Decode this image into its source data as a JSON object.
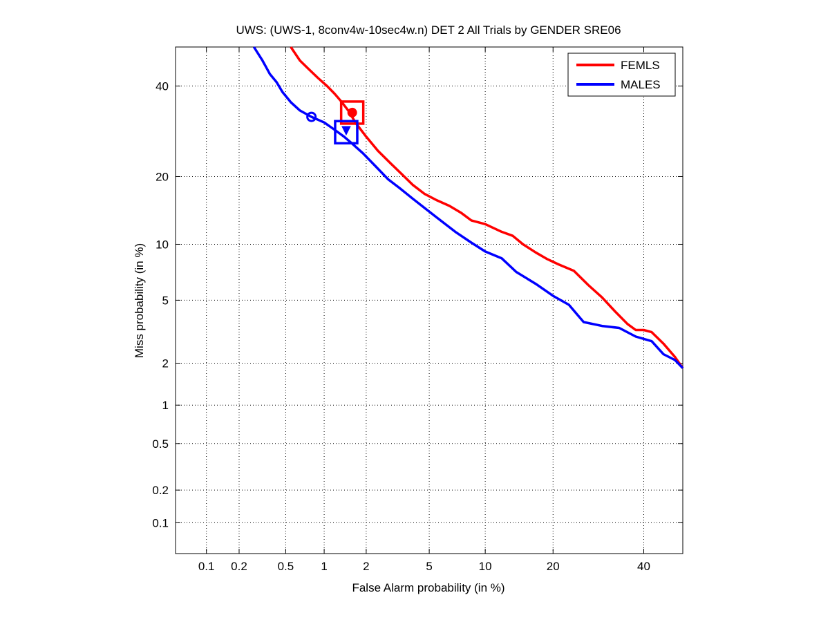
{
  "chart_data": {
    "type": "line",
    "title": "UWS: (UWS-1, 8conv4w-10sec4w.n) DET 2 All Trials by GENDER SRE06",
    "xlabel": "False Alarm probability (in %)",
    "ylabel": "Miss probability (in %)",
    "xscale": "normal-deviate",
    "yscale": "normal-deviate",
    "xlim": [
      0.05,
      50
    ],
    "ylim": [
      0.05,
      50
    ],
    "grid": true,
    "legend_position": "top-right",
    "x_ticks": [
      {
        "value": 0.1,
        "label": "0.1"
      },
      {
        "value": 0.2,
        "label": "0.2"
      },
      {
        "value": 0.5,
        "label": "0.5"
      },
      {
        "value": 1,
        "label": "1"
      },
      {
        "value": 2,
        "label": "2"
      },
      {
        "value": 5,
        "label": "5"
      },
      {
        "value": 10,
        "label": "10"
      },
      {
        "value": 20,
        "label": "20"
      },
      {
        "value": 40,
        "label": "40"
      }
    ],
    "y_ticks": [
      {
        "value": 0.1,
        "label": "0.1"
      },
      {
        "value": 0.2,
        "label": "0.2"
      },
      {
        "value": 0.5,
        "label": "0.5"
      },
      {
        "value": 1,
        "label": "1"
      },
      {
        "value": 2,
        "label": "2"
      },
      {
        "value": 5,
        "label": "5"
      },
      {
        "value": 10,
        "label": "10"
      },
      {
        "value": 20,
        "label": "20"
      },
      {
        "value": 40,
        "label": "40"
      }
    ],
    "series": [
      {
        "name": "FEMLS",
        "color": "#ff0000",
        "x": [
          0.55,
          0.65,
          0.75,
          0.9,
          1.05,
          1.2,
          1.35,
          1.5,
          1.7,
          2.0,
          2.4,
          2.9,
          3.4,
          4.0,
          4.7,
          5.5,
          6.5,
          7.5,
          8.5,
          10,
          12,
          13.5,
          15,
          17,
          19,
          21,
          24,
          27,
          30,
          33,
          36,
          38,
          40,
          42,
          45,
          48,
          50
        ],
        "y": [
          50,
          46.5,
          44.5,
          42,
          40,
          38,
          36,
          34,
          31,
          28,
          25,
          22.5,
          20.5,
          18.5,
          17,
          16,
          15.1,
          14.1,
          13,
          12.5,
          11.5,
          11,
          10,
          9.1,
          8.4,
          7.9,
          7.3,
          6.1,
          5.2,
          4.3,
          3.6,
          3.3,
          3.3,
          3.2,
          2.7,
          2.2,
          1.85
        ]
      },
      {
        "name": "MALES",
        "color": "#0000ff",
        "x": [
          0.27,
          0.32,
          0.37,
          0.42,
          0.47,
          0.55,
          0.65,
          0.8,
          1.0,
          1.2,
          1.4,
          1.6,
          1.9,
          2.3,
          2.8,
          3.3,
          4.0,
          4.8,
          5.8,
          7.0,
          8.5,
          10,
          12,
          14,
          17,
          20,
          23,
          26,
          30,
          34,
          38,
          42,
          45,
          48,
          50
        ],
        "y": [
          50,
          46.5,
          43,
          41,
          38.5,
          36,
          34,
          32.5,
          31.2,
          29.5,
          28,
          26.5,
          24.5,
          22,
          19.5,
          18,
          16.2,
          14.6,
          13,
          11.5,
          10.2,
          9.2,
          8.5,
          7.2,
          6.2,
          5.3,
          4.7,
          3.7,
          3.5,
          3.4,
          3.0,
          2.8,
          2.3,
          2.1,
          1.85
        ]
      }
    ],
    "markers": [
      {
        "series": "FEMLS",
        "shape": "square",
        "x": 1.6,
        "y": 33.5
      },
      {
        "series": "FEMLS",
        "shape": "filled-circle",
        "x": 1.6,
        "y": 33.5
      },
      {
        "series": "MALES",
        "shape": "square",
        "x": 1.45,
        "y": 29
      },
      {
        "series": "MALES",
        "shape": "filled-triangle",
        "x": 1.45,
        "y": 29.5
      },
      {
        "series": "MALES",
        "shape": "circle",
        "x": 0.8,
        "y": 32.5
      }
    ]
  }
}
